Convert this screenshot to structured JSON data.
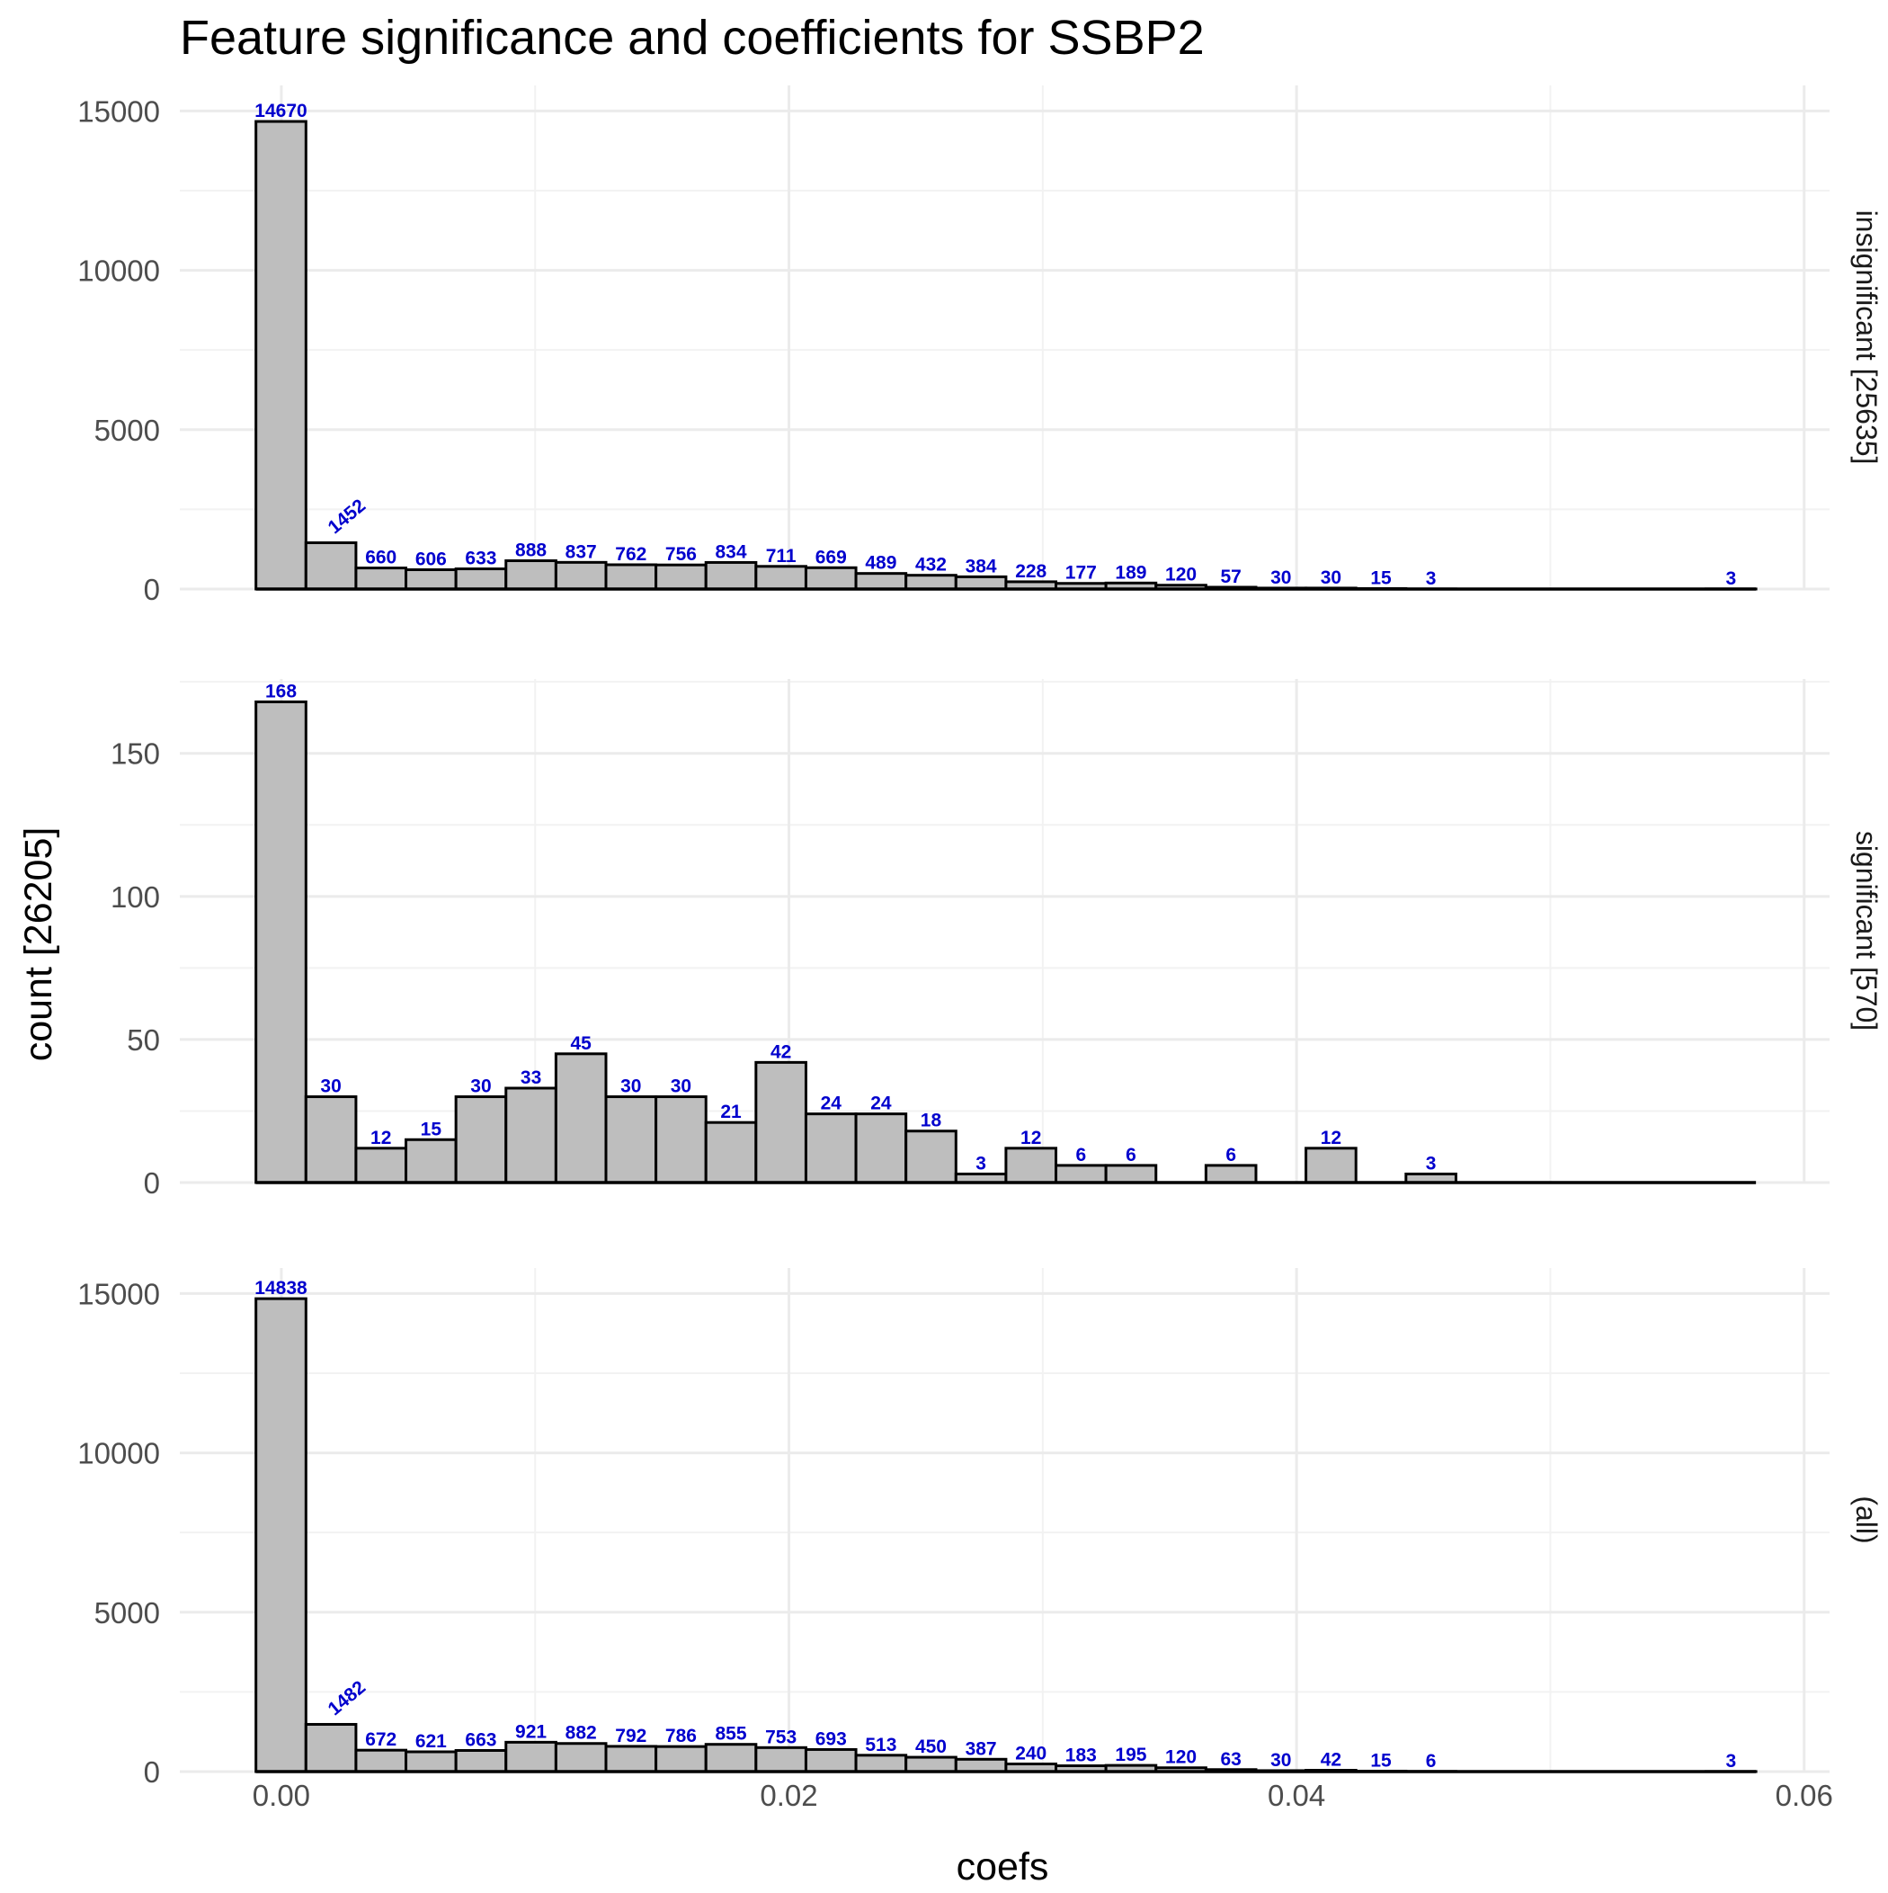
{
  "chart_data": {
    "type": "bar",
    "title": "Feature significance and coefficients for SSBP2",
    "xlabel": "coefs",
    "ylabel": "count [26205]",
    "xlim": [
      -0.004,
      0.061
    ],
    "x_ticks": [
      0.0,
      0.02,
      0.04,
      0.06
    ],
    "x_tick_labels": [
      "0.00",
      "0.02",
      "0.04",
      "0.06"
    ],
    "bin_start": -0.001,
    "bin_width": 0.00197,
    "num_bins": 30,
    "grid": true,
    "panels": [
      {
        "label": "insignificant [25635]",
        "ylim": [
          0,
          15800
        ],
        "y_ticks": [
          0,
          5000,
          10000,
          15000
        ],
        "y_tick_labels": [
          "0",
          "5000",
          "10000",
          "15000"
        ],
        "values": [
          14670,
          1452,
          660,
          606,
          633,
          888,
          837,
          762,
          756,
          834,
          711,
          669,
          489,
          432,
          384,
          228,
          177,
          189,
          120,
          57,
          30,
          30,
          15,
          3,
          0,
          0,
          0,
          0,
          0,
          3
        ],
        "value_labels": [
          "14670",
          "1452",
          "660",
          "606",
          "633",
          "888",
          "837",
          "762",
          "756",
          "834",
          "711",
          "669",
          "489",
          "432",
          "384",
          "228",
          "177",
          "189",
          "120",
          "57",
          "30",
          "30",
          "15",
          "3",
          "",
          "",
          "",
          "",
          "",
          "3"
        ]
      },
      {
        "label": "significant [570]",
        "ylim": [
          0,
          176
        ],
        "y_ticks": [
          0,
          50,
          100,
          150
        ],
        "y_tick_labels": [
          "0",
          "50",
          "100",
          "150"
        ],
        "values": [
          168,
          30,
          12,
          15,
          30,
          33,
          45,
          30,
          30,
          21,
          42,
          24,
          24,
          18,
          3,
          12,
          6,
          6,
          0,
          6,
          0,
          12,
          0,
          3,
          0,
          0,
          0,
          0,
          0,
          0
        ],
        "value_labels": [
          "168",
          "30",
          "12",
          "15",
          "30",
          "33",
          "45",
          "30",
          "30",
          "21",
          "42",
          "24",
          "24",
          "18",
          "3",
          "12",
          "6",
          "6",
          "",
          "6",
          "",
          "12",
          "",
          "3",
          "",
          "",
          "",
          "",
          "",
          ""
        ]
      },
      {
        "label": "(all)",
        "ylim": [
          0,
          15800
        ],
        "y_ticks": [
          0,
          5000,
          10000,
          15000
        ],
        "y_tick_labels": [
          "0",
          "5000",
          "10000",
          "15000"
        ],
        "values": [
          14838,
          1482,
          672,
          621,
          663,
          921,
          882,
          792,
          786,
          855,
          753,
          693,
          513,
          450,
          387,
          240,
          183,
          195,
          120,
          63,
          30,
          42,
          15,
          6,
          0,
          0,
          0,
          0,
          0,
          3
        ],
        "value_labels": [
          "14838",
          "1482",
          "672",
          "621",
          "663",
          "921",
          "882",
          "792",
          "786",
          "855",
          "753",
          "693",
          "513",
          "450",
          "387",
          "240",
          "183",
          "195",
          "120",
          "63",
          "30",
          "42",
          "15",
          "6",
          "",
          "",
          "",
          "",
          "",
          "3"
        ]
      }
    ],
    "colors": {
      "bar_fill": "#bebebe",
      "bar_stroke": "#000000",
      "value_label": "#0000cd",
      "grid": "#ebebeb"
    }
  }
}
